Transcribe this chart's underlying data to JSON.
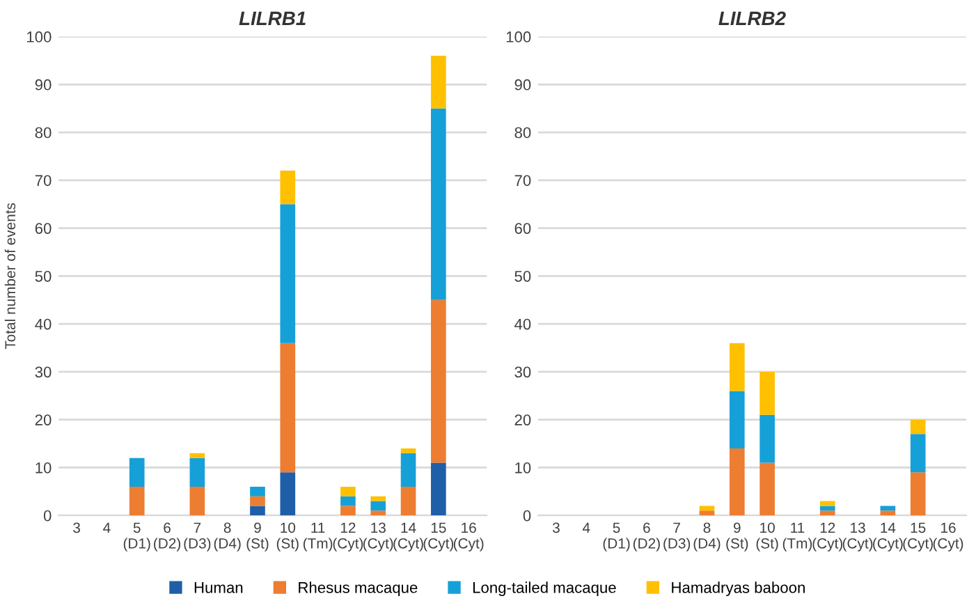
{
  "chart_data": [
    {
      "type": "bar",
      "title": "LILRB1",
      "ylabel": "Total number of events",
      "stacked": true,
      "grid": "y",
      "legend": "bottom",
      "categories": [
        "3",
        "4",
        "5\n(D1)",
        "6\n(D2)",
        "7\n(D3)",
        "8\n(D4)",
        "9\n(St)",
        "10\n(St)",
        "11\n(Tm)",
        "12\n(Cyt)",
        "13\n(Cyt)",
        "14\n(Cyt)",
        "15\n(Cyt)",
        "16\n(Cyt)"
      ],
      "ylim": [
        0,
        100
      ],
      "yticks": [
        0,
        10,
        20,
        30,
        40,
        50,
        60,
        70,
        80,
        90,
        100
      ],
      "series": [
        {
          "name": "Human",
          "color": "#1f5fa8",
          "values": [
            0,
            0,
            0,
            0,
            0,
            0,
            2,
            9,
            0,
            0,
            0,
            0,
            11,
            0
          ]
        },
        {
          "name": "Rhesus macaque",
          "color": "#ed7d31",
          "values": [
            0,
            0,
            6,
            0,
            6,
            0,
            2,
            27,
            0,
            2,
            1,
            6,
            34,
            0
          ]
        },
        {
          "name": "Long-tailed macaque",
          "color": "#16a0d8",
          "values": [
            0,
            0,
            6,
            0,
            6,
            0,
            2,
            29,
            0,
            2,
            2,
            7,
            40,
            0
          ]
        },
        {
          "name": "Hamadryas baboon",
          "color": "#ffc000",
          "values": [
            0,
            0,
            0,
            0,
            1,
            0,
            0,
            7,
            0,
            2,
            1,
            1,
            11,
            0
          ]
        }
      ]
    },
    {
      "type": "bar",
      "title": "LILRB2",
      "stacked": true,
      "grid": "y",
      "categories": [
        "3",
        "4",
        "5\n(D1)",
        "6\n(D2)",
        "7\n(D3)",
        "8\n(D4)",
        "9\n(St)",
        "10\n(St)",
        "11\n(Tm)",
        "12\n(Cyt)",
        "13\n(Cyt)",
        "14\n(Cyt)",
        "15\n(Cyt)",
        "16\n(Cyt)"
      ],
      "ylim": [
        0,
        100
      ],
      "yticks": [
        0,
        10,
        20,
        30,
        40,
        50,
        60,
        70,
        80,
        90,
        100
      ],
      "series": [
        {
          "color": "#ed7d31",
          "values": [
            0,
            0,
            0,
            0,
            0,
            1,
            14,
            11,
            0,
            1,
            0,
            1,
            9,
            0
          ]
        },
        {
          "color": "#16a0d8",
          "values": [
            0,
            0,
            0,
            0,
            0,
            0,
            12,
            10,
            0,
            1,
            0,
            1,
            8,
            0
          ]
        },
        {
          "color": "#ffc000",
          "values": [
            0,
            0,
            0,
            0,
            0,
            1,
            10,
            9,
            0,
            1,
            0,
            0,
            3,
            0
          ]
        }
      ]
    }
  ]
}
